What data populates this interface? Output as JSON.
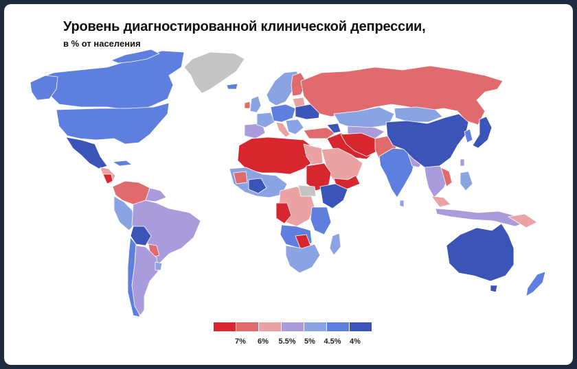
{
  "title": "Уровень диагностированной клинической депрессии,",
  "subtitle": "в % от населения",
  "palette": {
    "c1": "#d7262e",
    "c2": "#e06a6c",
    "c3": "#eba2a3",
    "c4": "#a99bdc",
    "c5": "#8aa3e3",
    "c6": "#5f7fde",
    "c7": "#3a54b8",
    "nodata": "#c4c4c4"
  },
  "legend": {
    "colors": [
      "#d7262e",
      "#e06a6c",
      "#eba2a3",
      "#a99bdc",
      "#8aa3e3",
      "#5f7fde",
      "#3a54b8"
    ],
    "labels": [
      "7%",
      "6%",
      "5.5%",
      "5%",
      "4.5%",
      "4%"
    ]
  },
  "regions": [
    {
      "name": "greenland",
      "value": "nodata"
    },
    {
      "name": "canada",
      "value": "4.5%"
    },
    {
      "name": "usa",
      "value": "4.5%"
    },
    {
      "name": "mexico",
      "value": "4%"
    },
    {
      "name": "russia",
      "value": "6%"
    },
    {
      "name": "china",
      "value": "4%"
    },
    {
      "name": "australia",
      "value": "4%"
    },
    {
      "name": "brazil",
      "value": "5%"
    },
    {
      "name": "sahara-north-africa",
      "value": "7%"
    },
    {
      "name": "arabian-peninsula-iran",
      "value": "7%"
    },
    {
      "name": "india",
      "value": "4.5%"
    },
    {
      "name": "southern-africa",
      "value": "4.5%"
    }
  ]
}
